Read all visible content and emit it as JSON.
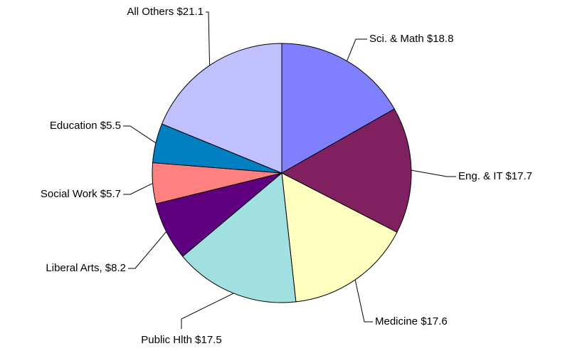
{
  "chart_data": {
    "type": "pie",
    "categories": [
      "Sci. & Math",
      "Eng. & IT",
      "Medicine",
      "Public Hlth",
      "Liberal Arts,",
      "Social Work",
      "Education",
      "All Others"
    ],
    "values": [
      18.8,
      17.7,
      17.6,
      17.5,
      8.2,
      5.7,
      5.5,
      21.1
    ],
    "value_labels": [
      "$18.8",
      "$17.7",
      "$17.6",
      "$17.5",
      "$8.2",
      "$5.7",
      "$5.5",
      "$21.1"
    ],
    "colors": [
      "#8080ff",
      "#802060",
      "#ffffc0",
      "#a0e0e0",
      "#600080",
      "#ff8080",
      "#0080c0",
      "#c0c0ff"
    ]
  }
}
